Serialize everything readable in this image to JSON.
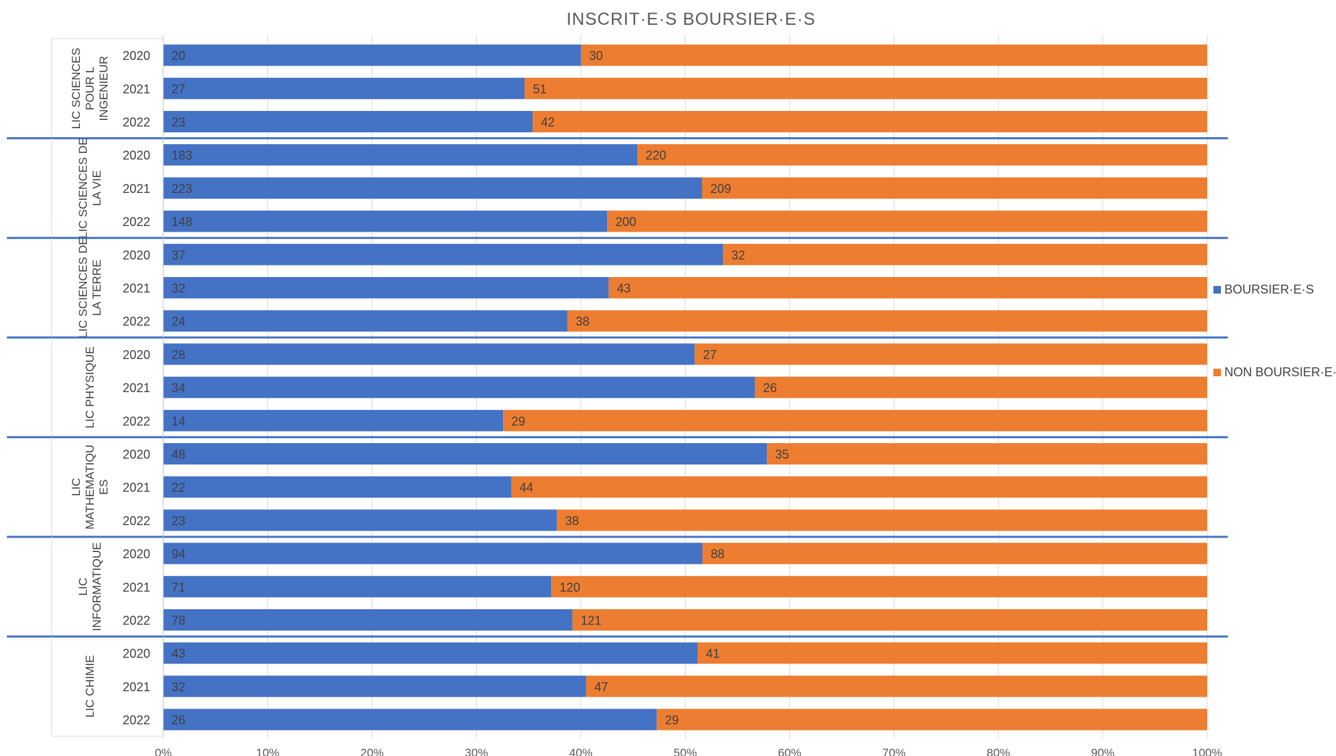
{
  "chart_data": {
    "type": "bar",
    "stacked": "percent",
    "orientation": "horizontal",
    "title": "INSCRIT·E·S BOURSIER·E·S",
    "colors": {
      "boursiers": "#4472C4",
      "non_boursiers": "#ED7D31",
      "separator": "#4472C4"
    },
    "legend": {
      "position": "right",
      "entries": [
        {
          "name": "BOURSIER·E·S",
          "color": "#4472C4"
        },
        {
          "name": "NON BOURSIER·E·S",
          "color": "#ED7D31"
        }
      ]
    },
    "x_ticks": [
      "0%",
      "10%",
      "20%",
      "30%",
      "40%",
      "50%",
      "60%",
      "70%",
      "80%",
      "90%",
      "100%"
    ],
    "grid": true,
    "groups": [
      {
        "label": [
          "LIC SCIENCES",
          "POUR L",
          "INGENIEUR"
        ],
        "rows": [
          {
            "year": "2020",
            "boursiers": 20,
            "non_boursiers": 30
          },
          {
            "year": "2021",
            "boursiers": 27,
            "non_boursiers": 51
          },
          {
            "year": "2022",
            "boursiers": 23,
            "non_boursiers": 42
          }
        ]
      },
      {
        "label": [
          "LIC SCIENCES DE",
          "LA VIE"
        ],
        "rows": [
          {
            "year": "2020",
            "boursiers": 183,
            "non_boursiers": 220
          },
          {
            "year": "2021",
            "boursiers": 223,
            "non_boursiers": 209
          },
          {
            "year": "2022",
            "boursiers": 148,
            "non_boursiers": 200
          }
        ]
      },
      {
        "label": [
          "LIC SCIENCES DE",
          "LA TERRE"
        ],
        "rows": [
          {
            "year": "2020",
            "boursiers": 37,
            "non_boursiers": 32
          },
          {
            "year": "2021",
            "boursiers": 32,
            "non_boursiers": 43
          },
          {
            "year": "2022",
            "boursiers": 24,
            "non_boursiers": 38
          }
        ]
      },
      {
        "label": [
          "LIC PHYSIQUE"
        ],
        "rows": [
          {
            "year": "2020",
            "boursiers": 28,
            "non_boursiers": 27
          },
          {
            "year": "2021",
            "boursiers": 34,
            "non_boursiers": 26
          },
          {
            "year": "2022",
            "boursiers": 14,
            "non_boursiers": 29
          }
        ]
      },
      {
        "label": [
          "LIC",
          "MATHEMATIQU",
          "ES"
        ],
        "rows": [
          {
            "year": "2020",
            "boursiers": 48,
            "non_boursiers": 35
          },
          {
            "year": "2021",
            "boursiers": 22,
            "non_boursiers": 44
          },
          {
            "year": "2022",
            "boursiers": 23,
            "non_boursiers": 38
          }
        ]
      },
      {
        "label": [
          "LIC",
          "INFORMATIQUE"
        ],
        "rows": [
          {
            "year": "2020",
            "boursiers": 94,
            "non_boursiers": 88
          },
          {
            "year": "2021",
            "boursiers": 71,
            "non_boursiers": 120
          },
          {
            "year": "2022",
            "boursiers": 78,
            "non_boursiers": 121
          }
        ]
      },
      {
        "label": [
          "LIC CHIMIE"
        ],
        "rows": [
          {
            "year": "2020",
            "boursiers": 43,
            "non_boursiers": 41
          },
          {
            "year": "2021",
            "boursiers": 32,
            "non_boursiers": 47
          },
          {
            "year": "2022",
            "boursiers": 26,
            "non_boursiers": 29
          }
        ]
      }
    ]
  }
}
